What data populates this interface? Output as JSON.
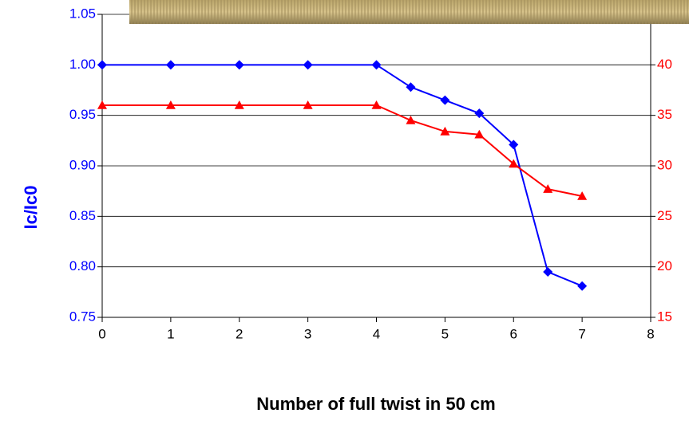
{
  "chart_data": {
    "type": "line",
    "x": [
      0,
      1,
      2,
      3,
      4,
      4.5,
      5,
      5.5,
      6,
      6.5,
      7
    ],
    "series": [
      {
        "color": "#0000ff",
        "values": [
          1.0,
          1.0,
          1.0,
          1.0,
          1.0,
          0.978,
          0.965,
          0.952,
          0.921,
          0.795,
          0.781
        ]
      },
      {
        "color": "#ff0000",
        "axis": "y2",
        "values": [
          36,
          36,
          36,
          36,
          36,
          34.5,
          33.4,
          33.1,
          30.2,
          27.7,
          27.0
        ]
      }
    ],
    "xlim": [
      0,
      8
    ],
    "xticks": [
      0,
      1,
      2,
      3,
      4,
      5,
      6,
      7,
      8
    ],
    "ylim": [
      0.75,
      1.05
    ],
    "yticks": [
      {
        "value": 0.75,
        "label": "0.75"
      },
      {
        "value": 0.8,
        "label": "0.80"
      },
      {
        "value": 0.85,
        "label": "0.85"
      },
      {
        "value": 0.9,
        "label": "0.90"
      },
      {
        "value": 0.95,
        "label": "0.95"
      },
      {
        "value": 1.0,
        "label": "1.00"
      },
      {
        "value": 1.05,
        "label": "1.05"
      }
    ],
    "y2lim": [
      15,
      45
    ],
    "y2ticks": [
      15,
      20,
      25,
      30,
      35,
      40
    ],
    "xlabel": "Number of full twist in 50 cm",
    "ylabel": "Ic/Ic0",
    "ylabel_color": "#0000ff",
    "y2_color": "#ff0000",
    "grid": true
  }
}
